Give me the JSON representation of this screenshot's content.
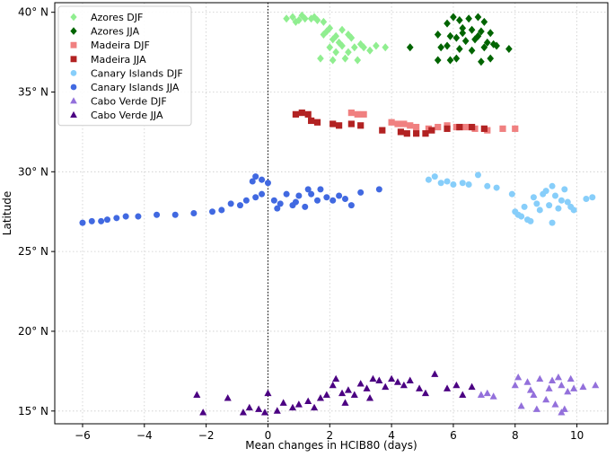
{
  "chart_data": {
    "type": "scatter",
    "xlabel": "Mean changes in HCIB80 (days)",
    "ylabel": "Latitude",
    "xlim": [
      -6.9,
      11.0
    ],
    "ylim": [
      14.2,
      40.6
    ],
    "xticks": [
      -6,
      -4,
      -2,
      0,
      2,
      4,
      6,
      8,
      10
    ],
    "xtick_labels": [
      "−6",
      "−4",
      "−2",
      "0",
      "2",
      "4",
      "6",
      "8",
      "10"
    ],
    "yticks": [
      15,
      20,
      25,
      30,
      35,
      40
    ],
    "ytick_labels": [
      "15° N",
      "20° N",
      "25° N",
      "30° N",
      "35° N",
      "40° N"
    ],
    "grid": true,
    "zero_line": true,
    "legend_position": "top-left",
    "series": [
      {
        "name": "Azores DJF",
        "color": "#90ee90",
        "marker": "diamond",
        "points": [
          [
            0.6,
            39.6
          ],
          [
            0.8,
            39.7
          ],
          [
            1.0,
            39.5
          ],
          [
            1.2,
            39.6
          ],
          [
            0.9,
            39.4
          ],
          [
            1.4,
            39.6
          ],
          [
            1.6,
            39.5
          ],
          [
            1.8,
            39.4
          ],
          [
            1.1,
            39.8
          ],
          [
            1.5,
            39.7
          ],
          [
            2.0,
            39.0
          ],
          [
            1.9,
            38.8
          ],
          [
            2.2,
            38.5
          ],
          [
            2.4,
            38.9
          ],
          [
            2.6,
            38.6
          ],
          [
            2.1,
            38.3
          ],
          [
            2.3,
            38.1
          ],
          [
            2.7,
            38.4
          ],
          [
            1.8,
            38.6
          ],
          [
            2.0,
            37.8
          ],
          [
            2.4,
            37.9
          ],
          [
            2.8,
            37.8
          ],
          [
            1.7,
            37.1
          ],
          [
            2.1,
            37.0
          ],
          [
            2.5,
            37.1
          ],
          [
            2.9,
            37.0
          ],
          [
            3.1,
            37.8
          ],
          [
            3.3,
            37.6
          ],
          [
            3.5,
            37.9
          ],
          [
            3.8,
            37.8
          ],
          [
            3.0,
            38.0
          ],
          [
            2.2,
            37.5
          ],
          [
            2.6,
            37.5
          ]
        ]
      },
      {
        "name": "Azores JJA",
        "color": "#006400",
        "marker": "diamond",
        "points": [
          [
            4.6,
            37.8
          ],
          [
            5.5,
            38.6
          ],
          [
            5.8,
            39.3
          ],
          [
            6.0,
            39.7
          ],
          [
            6.2,
            39.5
          ],
          [
            6.5,
            39.6
          ],
          [
            6.8,
            39.7
          ],
          [
            7.0,
            39.4
          ],
          [
            6.3,
            39.0
          ],
          [
            6.6,
            38.9
          ],
          [
            6.9,
            38.8
          ],
          [
            7.2,
            38.7
          ],
          [
            5.9,
            38.5
          ],
          [
            6.1,
            38.4
          ],
          [
            6.4,
            38.2
          ],
          [
            6.7,
            38.3
          ],
          [
            7.1,
            38.1
          ],
          [
            7.3,
            38.0
          ],
          [
            5.6,
            37.8
          ],
          [
            5.8,
            37.9
          ],
          [
            6.2,
            37.7
          ],
          [
            6.6,
            37.6
          ],
          [
            7.0,
            37.8
          ],
          [
            7.4,
            37.9
          ],
          [
            7.8,
            37.7
          ],
          [
            5.5,
            37.0
          ],
          [
            5.9,
            37.0
          ],
          [
            6.1,
            37.1
          ],
          [
            6.9,
            36.9
          ],
          [
            7.2,
            37.1
          ],
          [
            6.3,
            38.7
          ],
          [
            6.8,
            38.5
          ]
        ]
      },
      {
        "name": "Madeira DJF",
        "color": "#f08080",
        "marker": "square",
        "points": [
          [
            2.7,
            33.7
          ],
          [
            2.9,
            33.6
          ],
          [
            3.1,
            33.6
          ],
          [
            4.0,
            33.1
          ],
          [
            4.2,
            33.0
          ],
          [
            4.4,
            33.0
          ],
          [
            4.6,
            32.9
          ],
          [
            4.8,
            32.8
          ],
          [
            5.2,
            32.7
          ],
          [
            5.5,
            32.8
          ],
          [
            5.8,
            32.9
          ],
          [
            6.1,
            32.8
          ],
          [
            6.4,
            32.8
          ],
          [
            6.7,
            32.7
          ],
          [
            7.1,
            32.6
          ],
          [
            7.6,
            32.7
          ],
          [
            8.0,
            32.7
          ]
        ]
      },
      {
        "name": "Madeira JJA",
        "color": "#b22222",
        "marker": "square",
        "points": [
          [
            0.9,
            33.6
          ],
          [
            1.1,
            33.7
          ],
          [
            1.3,
            33.6
          ],
          [
            1.4,
            33.2
          ],
          [
            1.6,
            33.1
          ],
          [
            2.1,
            33.0
          ],
          [
            2.3,
            32.9
          ],
          [
            2.7,
            33.0
          ],
          [
            3.0,
            32.9
          ],
          [
            3.7,
            32.6
          ],
          [
            4.3,
            32.5
          ],
          [
            4.5,
            32.4
          ],
          [
            4.8,
            32.4
          ],
          [
            5.1,
            32.4
          ],
          [
            5.3,
            32.6
          ],
          [
            5.8,
            32.7
          ],
          [
            6.2,
            32.8
          ],
          [
            6.6,
            32.8
          ],
          [
            7.0,
            32.7
          ]
        ]
      },
      {
        "name": "Canary Islands DJF",
        "color": "#87cefa",
        "marker": "circle",
        "points": [
          [
            5.2,
            29.5
          ],
          [
            5.4,
            29.7
          ],
          [
            5.6,
            29.3
          ],
          [
            5.8,
            29.4
          ],
          [
            6.0,
            29.2
          ],
          [
            6.3,
            29.3
          ],
          [
            6.5,
            29.2
          ],
          [
            6.8,
            29.8
          ],
          [
            7.1,
            29.1
          ],
          [
            7.4,
            29.0
          ],
          [
            7.9,
            28.6
          ],
          [
            8.0,
            27.5
          ],
          [
            8.2,
            27.2
          ],
          [
            8.3,
            27.8
          ],
          [
            8.4,
            27.0
          ],
          [
            8.6,
            28.4
          ],
          [
            8.7,
            28.0
          ],
          [
            8.8,
            27.6
          ],
          [
            8.9,
            28.6
          ],
          [
            9.0,
            28.8
          ],
          [
            9.1,
            27.9
          ],
          [
            9.2,
            29.1
          ],
          [
            9.3,
            28.5
          ],
          [
            9.4,
            27.7
          ],
          [
            9.5,
            28.2
          ],
          [
            9.6,
            28.9
          ],
          [
            9.7,
            28.1
          ],
          [
            9.9,
            27.6
          ],
          [
            8.5,
            26.9
          ],
          [
            9.2,
            26.8
          ],
          [
            10.3,
            28.3
          ],
          [
            10.5,
            28.4
          ],
          [
            8.1,
            27.3
          ],
          [
            9.8,
            27.8
          ]
        ]
      },
      {
        "name": "Canary Islands JJA",
        "color": "#4169e1",
        "marker": "circle",
        "points": [
          [
            -6.0,
            26.8
          ],
          [
            -5.7,
            26.9
          ],
          [
            -5.4,
            26.9
          ],
          [
            -5.2,
            27.0
          ],
          [
            -4.9,
            27.1
          ],
          [
            -4.6,
            27.2
          ],
          [
            -4.2,
            27.2
          ],
          [
            -3.6,
            27.3
          ],
          [
            -3.0,
            27.3
          ],
          [
            -2.4,
            27.4
          ],
          [
            -1.8,
            27.5
          ],
          [
            -1.5,
            27.6
          ],
          [
            -1.2,
            28.0
          ],
          [
            -0.9,
            27.9
          ],
          [
            -0.7,
            28.2
          ],
          [
            -0.4,
            28.4
          ],
          [
            -0.2,
            28.6
          ],
          [
            -0.5,
            29.4
          ],
          [
            -0.4,
            29.7
          ],
          [
            -0.2,
            29.5
          ],
          [
            0.0,
            29.3
          ],
          [
            0.2,
            28.2
          ],
          [
            0.4,
            28.0
          ],
          [
            0.6,
            28.6
          ],
          [
            0.8,
            27.9
          ],
          [
            1.0,
            28.5
          ],
          [
            1.2,
            27.8
          ],
          [
            1.4,
            28.6
          ],
          [
            1.6,
            28.2
          ],
          [
            1.7,
            28.9
          ],
          [
            1.9,
            28.4
          ],
          [
            2.1,
            28.2
          ],
          [
            2.3,
            28.5
          ],
          [
            2.5,
            28.3
          ],
          [
            2.7,
            27.9
          ],
          [
            3.0,
            28.7
          ],
          [
            3.6,
            28.9
          ],
          [
            0.3,
            27.7
          ],
          [
            0.9,
            28.1
          ],
          [
            1.3,
            28.9
          ]
        ]
      },
      {
        "name": "Cabo Verde DJF",
        "color": "#9370db",
        "marker": "triangle",
        "points": [
          [
            6.9,
            16.0
          ],
          [
            7.1,
            16.1
          ],
          [
            7.3,
            15.9
          ],
          [
            8.0,
            16.6
          ],
          [
            8.1,
            17.1
          ],
          [
            8.2,
            15.3
          ],
          [
            8.4,
            16.8
          ],
          [
            8.6,
            16.0
          ],
          [
            8.8,
            17.0
          ],
          [
            9.0,
            15.7
          ],
          [
            9.2,
            16.9
          ],
          [
            9.3,
            15.4
          ],
          [
            9.5,
            16.6
          ],
          [
            9.6,
            15.1
          ],
          [
            9.7,
            16.2
          ],
          [
            9.8,
            17.0
          ],
          [
            9.9,
            16.4
          ],
          [
            9.4,
            17.1
          ],
          [
            9.1,
            16.4
          ],
          [
            8.7,
            15.1
          ],
          [
            10.2,
            16.5
          ],
          [
            10.6,
            16.6
          ],
          [
            9.5,
            14.9
          ],
          [
            8.5,
            16.3
          ]
        ]
      },
      {
        "name": "Cabo Verde JJA",
        "color": "#4b0082",
        "marker": "triangle",
        "points": [
          [
            -2.3,
            16.0
          ],
          [
            -2.1,
            14.9
          ],
          [
            -1.3,
            15.8
          ],
          [
            -0.8,
            14.9
          ],
          [
            -0.6,
            15.2
          ],
          [
            -0.3,
            15.1
          ],
          [
            -0.1,
            14.9
          ],
          [
            0.0,
            16.1
          ],
          [
            0.3,
            15.0
          ],
          [
            0.5,
            15.5
          ],
          [
            0.8,
            15.2
          ],
          [
            1.0,
            15.4
          ],
          [
            1.3,
            15.6
          ],
          [
            1.5,
            15.2
          ],
          [
            1.7,
            15.8
          ],
          [
            1.9,
            16.0
          ],
          [
            2.1,
            16.6
          ],
          [
            2.2,
            17.0
          ],
          [
            2.4,
            16.1
          ],
          [
            2.5,
            15.5
          ],
          [
            2.6,
            16.3
          ],
          [
            2.8,
            16.0
          ],
          [
            3.0,
            16.7
          ],
          [
            3.2,
            16.4
          ],
          [
            3.3,
            15.8
          ],
          [
            3.4,
            17.0
          ],
          [
            3.6,
            16.9
          ],
          [
            3.8,
            16.5
          ],
          [
            4.0,
            17.0
          ],
          [
            4.2,
            16.8
          ],
          [
            4.4,
            16.6
          ],
          [
            4.6,
            16.9
          ],
          [
            4.9,
            16.4
          ],
          [
            5.1,
            16.1
          ],
          [
            5.4,
            17.3
          ],
          [
            5.8,
            16.4
          ],
          [
            6.1,
            16.6
          ],
          [
            6.3,
            16.0
          ],
          [
            6.6,
            16.5
          ]
        ]
      }
    ]
  }
}
